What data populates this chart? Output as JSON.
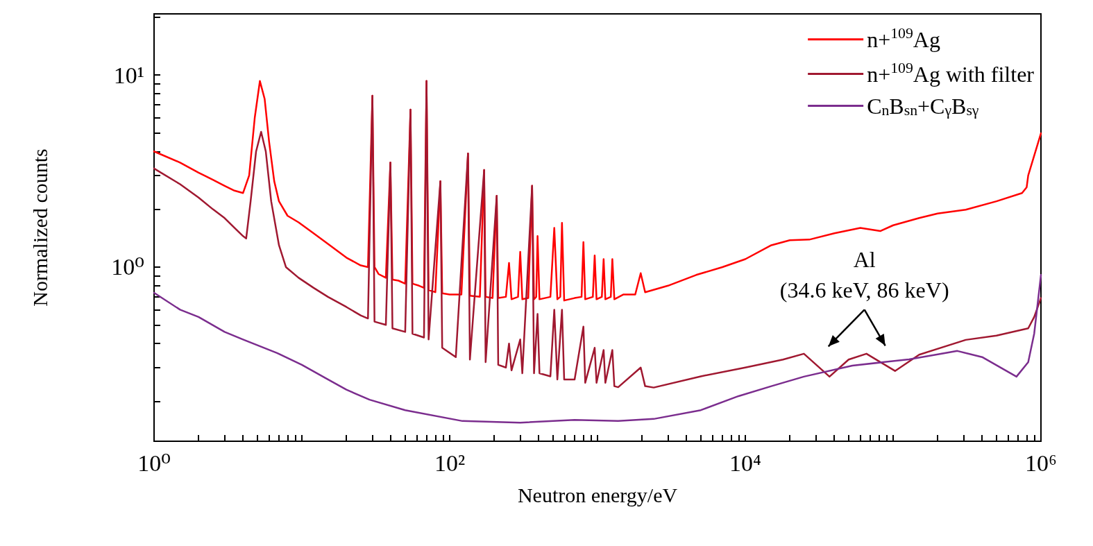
{
  "chart_data": {
    "type": "line",
    "xlabel": "Neutron energy/eV",
    "ylabel": "Normalized counts",
    "log": "xy",
    "grid": false,
    "legend": "top right",
    "marker": "none",
    "line_style": "solid",
    "xlim": [
      1,
      1000000
    ],
    "ylim": [
      0.124,
      20.8
    ],
    "xticks": [
      {
        "value": 1,
        "label": "10⁰"
      },
      {
        "value": 2,
        "label": null
      },
      {
        "value": 3,
        "label": null
      },
      {
        "value": 4,
        "label": null
      },
      {
        "value": 5,
        "label": null
      },
      {
        "value": 6,
        "label": null
      },
      {
        "value": 7,
        "label": null
      },
      {
        "value": 8,
        "label": null
      },
      {
        "value": 9,
        "label": null
      },
      {
        "value": 10,
        "label": null
      },
      {
        "value": 20,
        "label": null
      },
      {
        "value": 30,
        "label": null
      },
      {
        "value": 40,
        "label": null
      },
      {
        "value": 50,
        "label": null
      },
      {
        "value": 60,
        "label": null
      },
      {
        "value": 70,
        "label": null
      },
      {
        "value": 80,
        "label": null
      },
      {
        "value": 90,
        "label": null
      },
      {
        "value": 100,
        "label": "10²"
      },
      {
        "value": 200,
        "label": null
      },
      {
        "value": 300,
        "label": null
      },
      {
        "value": 400,
        "label": null
      },
      {
        "value": 500,
        "label": null
      },
      {
        "value": 600,
        "label": null
      },
      {
        "value": 700,
        "label": null
      },
      {
        "value": 800,
        "label": null
      },
      {
        "value": 900,
        "label": null
      },
      {
        "value": 1000,
        "label": null
      },
      {
        "value": 2000,
        "label": null
      },
      {
        "value": 3000,
        "label": null
      },
      {
        "value": 4000,
        "label": null
      },
      {
        "value": 5000,
        "label": null
      },
      {
        "value": 6000,
        "label": null
      },
      {
        "value": 7000,
        "label": null
      },
      {
        "value": 8000,
        "label": null
      },
      {
        "value": 9000,
        "label": null
      },
      {
        "value": 10000,
        "label": "10⁴"
      },
      {
        "value": 20000,
        "label": null
      },
      {
        "value": 30000,
        "label": null
      },
      {
        "value": 40000,
        "label": null
      },
      {
        "value": 50000,
        "label": null
      },
      {
        "value": 60000,
        "label": null
      },
      {
        "value": 70000,
        "label": null
      },
      {
        "value": 80000,
        "label": null
      },
      {
        "value": 90000,
        "label": null
      },
      {
        "value": 100000,
        "label": null
      },
      {
        "value": 200000,
        "label": null
      },
      {
        "value": 300000,
        "label": null
      },
      {
        "value": 400000,
        "label": null
      },
      {
        "value": 500000,
        "label": null
      },
      {
        "value": 600000,
        "label": null
      },
      {
        "value": 700000,
        "label": null
      },
      {
        "value": 800000,
        "label": null
      },
      {
        "value": 900000,
        "label": null
      },
      {
        "value": 1000000,
        "label": "10⁶"
      }
    ],
    "yticks": [
      {
        "value": 0.2,
        "label": null
      },
      {
        "value": 0.3,
        "label": null
      },
      {
        "value": 0.4,
        "label": null
      },
      {
        "value": 0.5,
        "label": null
      },
      {
        "value": 0.6,
        "label": null
      },
      {
        "value": 0.7,
        "label": null
      },
      {
        "value": 0.8,
        "label": null
      },
      {
        "value": 0.9,
        "label": null
      },
      {
        "value": 1,
        "label": "10⁰"
      },
      {
        "value": 2,
        "label": null
      },
      {
        "value": 3,
        "label": null
      },
      {
        "value": 4,
        "label": null
      },
      {
        "value": 5,
        "label": null
      },
      {
        "value": 6,
        "label": null
      },
      {
        "value": 7,
        "label": null
      },
      {
        "value": 8,
        "label": null
      },
      {
        "value": 9,
        "label": null
      },
      {
        "value": 10,
        "label": "10¹"
      },
      {
        "value": 20,
        "label": null
      }
    ],
    "annotations": [
      "Al\n(34.6 keV, 86 keV)"
    ],
    "series": [
      {
        "name": "n+$^{109}$Ag",
        "color": "#ff0000",
        "x": [
          1,
          1.5,
          2,
          2.5,
          3,
          3.5,
          4,
          4.4,
          4.8,
          5.2,
          5.6,
          6,
          6.5,
          7,
          8,
          9.5,
          12,
          15,
          20,
          25,
          28,
          30,
          31,
          33,
          37,
          39.7,
          41,
          45,
          50,
          54.3,
          56,
          62,
          67,
          69.7,
          72,
          80,
          86.5,
          89,
          100,
          120,
          133,
          137,
          160,
          171,
          175,
          195,
          208,
          213,
          240,
          252,
          262,
          290,
          300,
          310,
          340,
          361,
          372,
          385,
          393,
          405,
          480,
          510,
          535,
          560,
          575,
          595,
          700,
          780,
          803,
          826,
          930,
          957,
          985,
          1070,
          1100,
          1130,
          1230,
          1260,
          1300,
          1500,
          1800,
          1960,
          2100,
          3000,
          4650,
          7000,
          10000,
          15000,
          20000,
          27100,
          40000,
          60000,
          81900,
          100000,
          150000,
          200000,
          310000,
          500000,
          745000,
          800000,
          820000,
          900000,
          1000000
        ],
        "values": [
          4.0,
          3.5,
          3.1,
          2.85,
          2.65,
          2.5,
          2.43,
          3.0,
          6.0,
          9.3,
          7.5,
          4.5,
          2.8,
          2.2,
          1.85,
          1.71,
          1.5,
          1.32,
          1.12,
          1.02,
          1.0,
          7.8,
          1.0,
          0.92,
          0.88,
          3.5,
          0.86,
          0.85,
          0.82,
          6.6,
          0.82,
          0.8,
          0.78,
          9.3,
          0.76,
          0.74,
          2.8,
          0.73,
          0.72,
          0.72,
          3.9,
          0.71,
          0.7,
          3.2,
          0.7,
          0.69,
          2.35,
          0.69,
          0.7,
          1.05,
          0.68,
          0.7,
          1.2,
          0.68,
          0.69,
          2.65,
          0.68,
          0.7,
          1.45,
          0.68,
          0.7,
          1.6,
          0.68,
          0.7,
          1.7,
          0.67,
          0.69,
          0.7,
          1.35,
          0.68,
          0.7,
          1.15,
          0.68,
          0.7,
          1.1,
          0.68,
          0.7,
          1.1,
          0.68,
          0.72,
          0.72,
          0.93,
          0.74,
          0.8,
          0.91,
          1.0,
          1.1,
          1.3,
          1.38,
          1.39,
          1.5,
          1.6,
          1.54,
          1.65,
          1.8,
          1.9,
          1.99,
          2.2,
          2.43,
          2.6,
          3.0,
          3.8,
          4.97
        ]
      },
      {
        "name": "n+$^{109}$Ag with filter",
        "color": "#a01830",
        "x": [
          1,
          1.5,
          2,
          2.5,
          3,
          3.5,
          4,
          4.2,
          4.5,
          4.9,
          5.3,
          5.7,
          6.2,
          7,
          7.8,
          9.5,
          12,
          15,
          20,
          25,
          28,
          30,
          31,
          37,
          39.7,
          41,
          50,
          54.3,
          56,
          67,
          69.7,
          72,
          86.5,
          89,
          110,
          133,
          137,
          171,
          175,
          208,
          213,
          240,
          252,
          262,
          300,
          310,
          361,
          372,
          393,
          405,
          480,
          510,
          535,
          575,
          595,
          700,
          803,
          826,
          957,
          985,
          1100,
          1130,
          1260,
          1300,
          1380,
          1960,
          2100,
          2400,
          5000,
          10000,
          18000,
          24900,
          37100,
          50000,
          66000,
          103000,
          150000,
          310000,
          500000,
          820000,
          900000,
          1000000
        ],
        "values": [
          3.26,
          2.7,
          2.3,
          2.0,
          1.8,
          1.6,
          1.45,
          1.41,
          2.2,
          4.0,
          5.06,
          4.0,
          2.2,
          1.3,
          1.0,
          0.88,
          0.78,
          0.7,
          0.62,
          0.56,
          0.54,
          7.8,
          0.52,
          0.5,
          3.5,
          0.48,
          0.46,
          6.6,
          0.45,
          0.43,
          9.3,
          0.42,
          2.8,
          0.38,
          0.34,
          3.9,
          0.33,
          3.2,
          0.32,
          2.35,
          0.31,
          0.3,
          0.4,
          0.29,
          0.42,
          0.28,
          2.65,
          0.28,
          0.57,
          0.28,
          0.27,
          0.6,
          0.26,
          0.6,
          0.26,
          0.26,
          0.49,
          0.25,
          0.38,
          0.25,
          0.37,
          0.25,
          0.37,
          0.24,
          0.237,
          0.3,
          0.24,
          0.236,
          0.27,
          0.3,
          0.33,
          0.354,
          0.269,
          0.33,
          0.354,
          0.288,
          0.35,
          0.418,
          0.44,
          0.48,
          0.55,
          0.69
        ]
      },
      {
        "name": "C$_{n}$B$_{sn}$+C$_{γ}$B$_{sγ}$",
        "color": "#7b2d8e",
        "x": [
          1,
          1.5,
          2,
          3,
          4,
          6.8,
          10,
          15,
          20,
          28.7,
          50,
          122,
          300,
          700,
          1380,
          2400,
          5000,
          9000,
          15000,
          24900,
          53000,
          128000,
          272000,
          400000,
          683000,
          820000,
          900000,
          1000000
        ],
        "values": [
          0.735,
          0.6,
          0.55,
          0.46,
          0.42,
          0.357,
          0.31,
          0.26,
          0.23,
          0.204,
          0.18,
          0.158,
          0.155,
          0.16,
          0.158,
          0.162,
          0.18,
          0.213,
          0.24,
          0.269,
          0.307,
          0.331,
          0.366,
          0.34,
          0.269,
          0.32,
          0.45,
          0.91
        ]
      }
    ]
  }
}
